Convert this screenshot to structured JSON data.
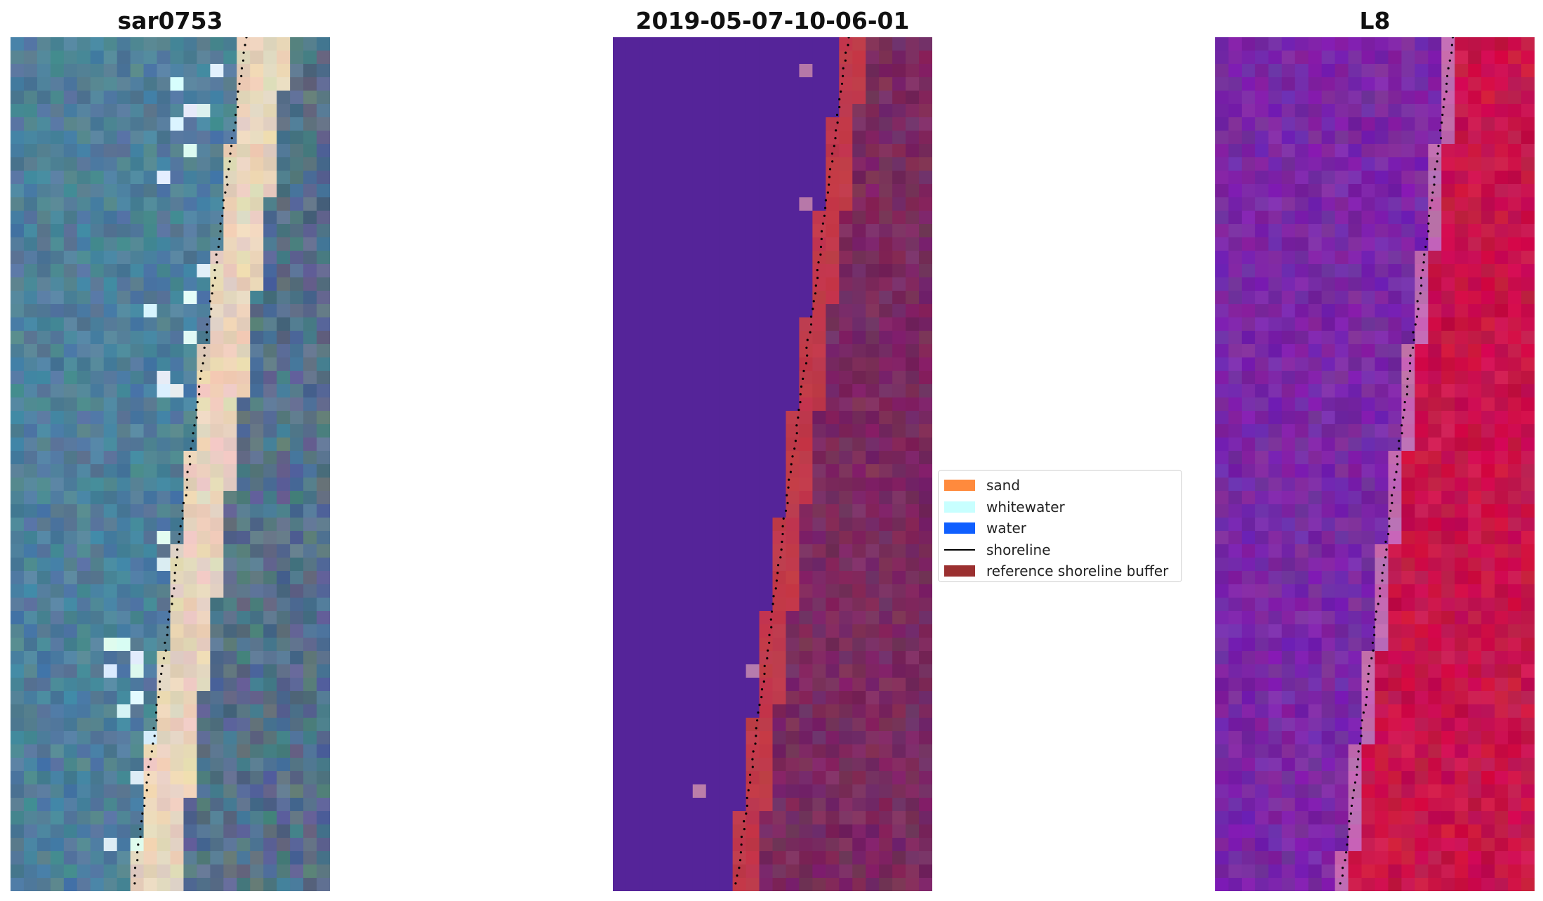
{
  "panels": [
    {
      "title": "sar0753"
    },
    {
      "title": "2019-05-07-10-06-01"
    },
    {
      "title": "L8"
    }
  ],
  "legend": {
    "items": [
      {
        "label": "sand",
        "color": "#ff8a3d"
      },
      {
        "label": "whitewater",
        "color": "#c8ffff"
      },
      {
        "label": "water",
        "color": "#0f5fff"
      },
      {
        "label": "shoreline",
        "color": "#000000"
      },
      {
        "label": "reference shoreline buffer",
        "color": "#9b3030"
      }
    ]
  },
  "colors": {
    "rgb_water": "#4f7f9a",
    "rgb_sand": "#e8d3bc",
    "rgb_land": "#55708a",
    "class_water": "#552499",
    "class_buffer": "#c0394a",
    "class_land": "#7a2a60",
    "ndwi_water": "#7a28a6",
    "ndwi_land": "#c8144a"
  }
}
